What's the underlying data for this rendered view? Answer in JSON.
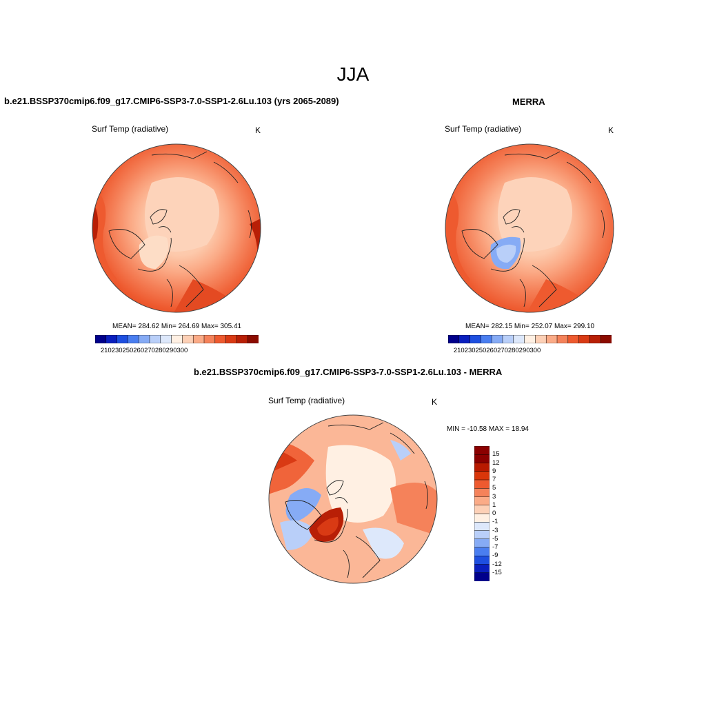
{
  "title": "JJA",
  "panels": [
    {
      "title": "b.e21.BSSP370cmip6.f09_g17.CMIP6-SSP3-7.0-SSP1-2.6Lu.103 (yrs 2065-2089)",
      "field": "Surf Temp (radiative)",
      "units": "K",
      "stats": "MEAN= 284.62  Min= 264.69  Max= 305.41",
      "colorbar_ticks": [
        "210",
        "230",
        "250",
        "260",
        "270",
        "280",
        "290",
        "300"
      ]
    },
    {
      "title": "MERRA",
      "field": "Surf Temp (radiative)",
      "units": "K",
      "stats": "MEAN= 282.15  Min= 252.07  Max= 299.10",
      "colorbar_ticks": [
        "210",
        "230",
        "250",
        "260",
        "270",
        "280",
        "290",
        "300"
      ]
    },
    {
      "title": "b.e21.BSSP370cmip6.f09_g17.CMIP6-SSP3-7.0-SSP1-2.6Lu.103 - MERRA",
      "field": "Surf Temp (radiative)",
      "units": "K",
      "stats": "MIN = -10.58 MAX =  18.94",
      "colorbar_ticks": [
        "15",
        "12",
        "9",
        "7",
        "5",
        "3",
        "1",
        "0",
        "-1",
        "-3",
        "-5",
        "-7",
        "-9",
        "-12",
        "-15"
      ]
    }
  ],
  "colors": {
    "abs_scale": [
      "#00008b",
      "#0a1fbe",
      "#1e4fe0",
      "#4a7ef0",
      "#86abf5",
      "#b9cff9",
      "#dde8fb",
      "#fff0e3",
      "#fdd0b6",
      "#fbab87",
      "#f5825a",
      "#ee5a2f",
      "#d93a14",
      "#b81f06",
      "#8b0b00"
    ],
    "diff_scale": [
      "#8b0000",
      "#b81a00",
      "#d9360a",
      "#ee5a2f",
      "#f5825a",
      "#fbab87",
      "#fdd0b6",
      "#fff0e3",
      "#dde8fb",
      "#b9cff9",
      "#86abf5",
      "#4a7ef0",
      "#1e4fe0",
      "#0a1fbe",
      "#00008b"
    ]
  }
}
